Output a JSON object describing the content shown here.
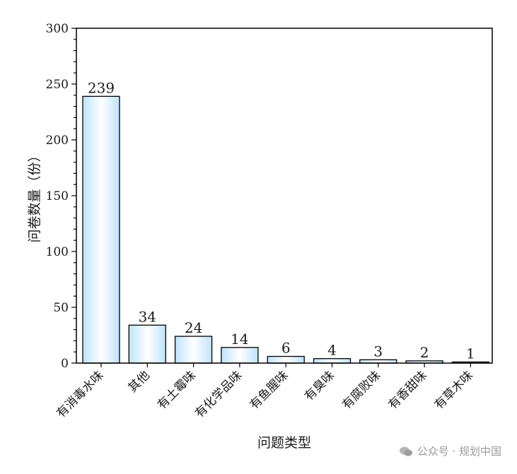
{
  "watermark": {
    "text": "公众号 · 规划中国",
    "icon": "wechat-icon"
  },
  "chart_data": {
    "type": "bar",
    "title": "",
    "xlabel": "问题类型",
    "ylabel": "问卷数量（份）",
    "ylim": [
      0,
      300
    ],
    "yticks": [
      0,
      50,
      100,
      150,
      200,
      250,
      300
    ],
    "categories": [
      "有消毒水味",
      "其他",
      "有土霉味",
      "有化学品味",
      "有鱼腥味",
      "有臭味",
      "有腐败味",
      "有香甜味",
      "有草木味"
    ],
    "values": [
      239,
      34,
      24,
      14,
      6,
      4,
      3,
      2,
      1
    ],
    "data_labels": [
      "239",
      "34",
      "24",
      "14",
      "6",
      "4",
      "3",
      "2",
      "1"
    ],
    "grid": false,
    "bar_fill": "gradient light-blue/white",
    "colors": {
      "bar_edge": "#000000",
      "bar_light": "#ffffff",
      "bar_blue": "#bfe3fb",
      "axis": "#000000",
      "text": "#1a1a1a"
    }
  }
}
